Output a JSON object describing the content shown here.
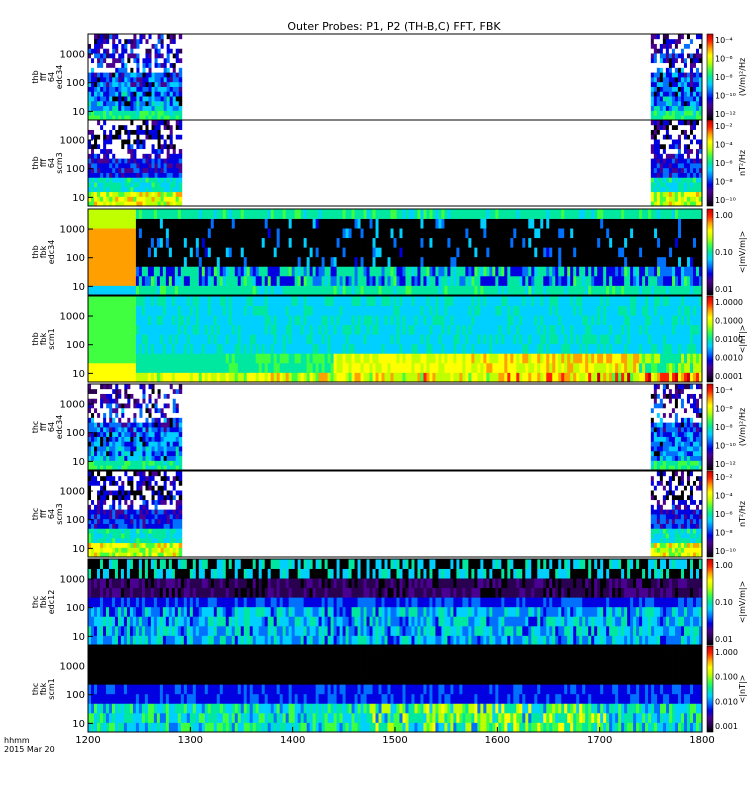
{
  "chart_data": {
    "type": "heatmap",
    "title": "Outer Probes: P1, P2 (TH-B,C) FFT, FBK",
    "x": {
      "label_lines": [
        "hhmm",
        "2015 Mar 20"
      ],
      "ticks": [
        "1200",
        "1300",
        "1400",
        "1500",
        "1600",
        "1700",
        "1800"
      ],
      "range": [
        "1200",
        "1800"
      ]
    },
    "panels": [
      {
        "id": "thb-fff64-edc34",
        "ylabel_lines": [
          "thb",
          "fff",
          "64",
          "edc34"
        ],
        "yscale": "log",
        "yticks": [
          "1000",
          "100",
          "10"
        ],
        "cbar_label": "(V/m)²/Hz",
        "cbar_ticks": [
          "10⁻⁴",
          "10⁻⁶",
          "10⁻⁸",
          "10⁻¹⁰",
          "10⁻¹²"
        ],
        "data_windows": [
          [
            "1200",
            "1255"
          ],
          [
            "1730",
            "1800"
          ]
        ],
        "style": "fff-e"
      },
      {
        "id": "thb-fff64-scm3",
        "ylabel_lines": [
          "thb",
          "fff",
          "64",
          "scm3"
        ],
        "yscale": "log",
        "yticks": [
          "1000",
          "100",
          "10"
        ],
        "cbar_label": "nT²/Hz",
        "cbar_ticks": [
          "10⁻²",
          "10⁻⁴",
          "10⁻⁶",
          "10⁻⁸",
          "10⁻¹⁰"
        ],
        "data_windows": [
          [
            "1200",
            "1255"
          ],
          [
            "1730",
            "1800"
          ]
        ],
        "style": "fff-b"
      },
      {
        "id": "thb-fbk-edc34",
        "ylabel_lines": [
          "thb",
          "fbk",
          "edc34"
        ],
        "yscale": "log",
        "yticks": [
          "1000",
          "100",
          "10"
        ],
        "cbar_label": "<|mV/m|>",
        "cbar_ticks": [
          "1.00",
          "0.10",
          "0.01"
        ],
        "data_windows": [
          [
            "1200",
            "1800"
          ]
        ],
        "style": "fbk-e-thb"
      },
      {
        "id": "thb-fbk-scm1",
        "ylabel_lines": [
          "thb",
          "fbk",
          "scm1"
        ],
        "yscale": "log",
        "yticks": [
          "1000",
          "100",
          "10"
        ],
        "cbar_label": "<|nT|>",
        "cbar_ticks": [
          "1.0000",
          "0.1000",
          "0.0100",
          "0.0010",
          "0.0001"
        ],
        "data_windows": [
          [
            "1200",
            "1800"
          ]
        ],
        "style": "fbk-b-thb"
      },
      {
        "id": "thc-fff64-edc34",
        "ylabel_lines": [
          "thc",
          "fff",
          "64",
          "edc34"
        ],
        "yscale": "log",
        "yticks": [
          "1000",
          "100",
          "10"
        ],
        "cbar_label": "(V/m)²/Hz",
        "cbar_ticks": [
          "10⁻⁴",
          "10⁻⁶",
          "10⁻⁸",
          "10⁻¹⁰",
          "10⁻¹²"
        ],
        "data_windows": [
          [
            "1200",
            "1255"
          ],
          [
            "1730",
            "1800"
          ]
        ],
        "style": "fff-e"
      },
      {
        "id": "thc-fff64-scm3",
        "ylabel_lines": [
          "thc",
          "fff",
          "64",
          "scm3"
        ],
        "yscale": "log",
        "yticks": [
          "1000",
          "100",
          "10"
        ],
        "cbar_label": "nT²/Hz",
        "cbar_ticks": [
          "10⁻²",
          "10⁻⁴",
          "10⁻⁶",
          "10⁻⁸",
          "10⁻¹⁰"
        ],
        "data_windows": [
          [
            "1200",
            "1255"
          ],
          [
            "1730",
            "1800"
          ]
        ],
        "style": "fff-b"
      },
      {
        "id": "thc-fbk-edc12",
        "ylabel_lines": [
          "thc",
          "fbk",
          "edc12"
        ],
        "yscale": "log",
        "yticks": [
          "1000",
          "100",
          "10"
        ],
        "cbar_label": "<|mV/m|>",
        "cbar_ticks": [
          "1.00",
          "0.10",
          "0.01"
        ],
        "data_windows": [
          [
            "1200",
            "1800"
          ]
        ],
        "style": "fbk-e-thc"
      },
      {
        "id": "thc-fbk-scm1",
        "ylabel_lines": [
          "thc",
          "fbk",
          "scm1"
        ],
        "yscale": "log",
        "yticks": [
          "1000",
          "100",
          "10"
        ],
        "cbar_label": "<|nT|>",
        "cbar_ticks": [
          "1.000",
          "0.100",
          "0.010",
          "0.001"
        ],
        "data_windows": [
          [
            "1200",
            "1800"
          ]
        ],
        "style": "fbk-b-thc"
      }
    ],
    "colormap": [
      "#000000",
      "#2a0050",
      "#4a0090",
      "#0000e0",
      "#0070ff",
      "#00d0ff",
      "#00e8a0",
      "#40ff40",
      "#c0ff00",
      "#ffff00",
      "#ffa000",
      "#ff2000",
      "#c80000"
    ]
  }
}
